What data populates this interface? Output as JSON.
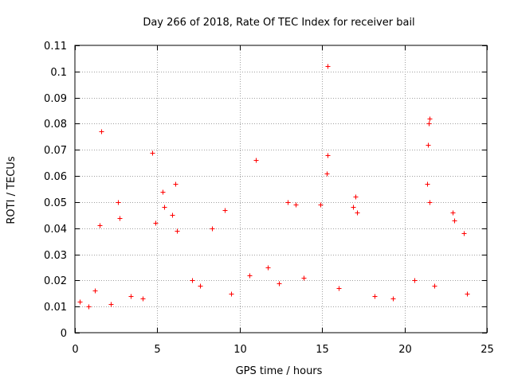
{
  "chart_data": {
    "type": "scatter",
    "title": "Day 266 of 2018, Rate Of TEC Index for receiver bail",
    "xlabel": "GPS time / hours",
    "ylabel": "ROTI / TECUs",
    "xlim": [
      0,
      25
    ],
    "ylim": [
      0,
      0.11
    ],
    "xticks": [
      0,
      5,
      10,
      15,
      20,
      25
    ],
    "xtick_labels": [
      "0",
      "5",
      "10",
      "15",
      "20",
      "25"
    ],
    "yticks": [
      0,
      0.01,
      0.02,
      0.03,
      0.04,
      0.05,
      0.06,
      0.07,
      0.08,
      0.09,
      0.1,
      0.11
    ],
    "ytick_labels": [
      "0",
      "0.01",
      "0.02",
      "0.03",
      "0.04",
      "0.05",
      "0.06",
      "0.07",
      "0.08",
      "0.09",
      "0.1",
      "0.11"
    ],
    "grid": true,
    "marker": "+",
    "series": [
      {
        "name": "ROTI",
        "color": "#ff0000",
        "x": [
          1.6,
          4.7,
          11.0,
          15.35,
          15.33,
          15.3,
          21.5,
          21.45,
          21.4,
          21.35,
          21.5,
          6.1,
          5.3,
          2.6,
          2.7,
          1.5,
          8.3,
          9.1,
          12.9,
          13.4,
          14.9,
          17.0,
          16.9,
          17.1,
          22.9,
          23.0,
          23.6,
          4.9,
          5.4,
          5.9,
          6.2,
          0.3,
          0.8,
          1.2,
          2.2,
          3.4,
          4.1,
          7.1,
          7.6,
          9.5,
          10.6,
          11.7,
          12.4,
          13.9,
          16.0,
          18.2,
          19.3,
          20.6,
          21.8,
          23.8
        ],
        "y": [
          0.077,
          0.069,
          0.066,
          0.102,
          0.068,
          0.061,
          0.082,
          0.08,
          0.072,
          0.057,
          0.05,
          0.057,
          0.054,
          0.05,
          0.044,
          0.041,
          0.04,
          0.047,
          0.05,
          0.049,
          0.049,
          0.052,
          0.048,
          0.046,
          0.046,
          0.043,
          0.038,
          0.042,
          0.048,
          0.045,
          0.039,
          0.012,
          0.01,
          0.016,
          0.011,
          0.014,
          0.013,
          0.02,
          0.018,
          0.015,
          0.022,
          0.025,
          0.019,
          0.021,
          0.017,
          0.014,
          0.013,
          0.02,
          0.018,
          0.015
        ]
      }
    ]
  }
}
